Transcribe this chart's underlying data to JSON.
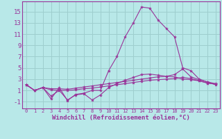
{
  "background_color": "#b8e8e8",
  "grid_color": "#9ecece",
  "line_color": "#993399",
  "xlabel": "Windchill (Refroidissement éolien,°C)",
  "xlabel_fontsize": 6.5,
  "ytick_fontsize": 6.5,
  "xtick_fontsize": 5.0,
  "yticks": [
    -1,
    1,
    3,
    5,
    7,
    9,
    11,
    13,
    15
  ],
  "xticks": [
    0,
    1,
    2,
    3,
    4,
    5,
    6,
    7,
    8,
    9,
    10,
    11,
    12,
    13,
    14,
    15,
    16,
    17,
    18,
    19,
    20,
    21,
    22,
    23
  ],
  "xlim": [
    -0.5,
    23.5
  ],
  "ylim": [
    -2.2,
    16.8
  ],
  "series": [
    {
      "x": [
        0,
        1,
        2,
        3,
        4,
        5,
        6,
        7,
        8,
        9,
        10,
        11,
        12,
        13,
        14,
        15,
        16,
        17,
        18,
        19,
        20,
        21,
        22,
        23
      ],
      "y": [
        2.0,
        1.0,
        1.5,
        -0.5,
        1.5,
        -0.8,
        0.3,
        0.5,
        1.0,
        1.0,
        4.5,
        7.0,
        10.5,
        13.0,
        15.8,
        15.6,
        13.5,
        12.0,
        10.5,
        5.0,
        4.5,
        3.0,
        2.5,
        2.0
      ]
    },
    {
      "x": [
        0,
        1,
        2,
        3,
        4,
        5,
        6,
        7,
        8,
        9,
        10,
        11,
        12,
        13,
        14,
        15,
        16,
        17,
        18,
        19,
        20,
        21,
        22,
        23
      ],
      "y": [
        2.0,
        1.0,
        1.5,
        1.3,
        1.3,
        1.2,
        1.4,
        1.6,
        1.8,
        2.0,
        2.2,
        2.4,
        2.6,
        2.8,
        3.0,
        3.2,
        3.4,
        3.5,
        3.8,
        4.8,
        3.4,
        2.9,
        2.5,
        2.2
      ]
    },
    {
      "x": [
        0,
        1,
        2,
        3,
        4,
        5,
        6,
        7,
        8,
        9,
        10,
        11,
        12,
        13,
        14,
        15,
        16,
        17,
        18,
        19,
        20,
        21,
        22,
        23
      ],
      "y": [
        2.0,
        1.0,
        1.5,
        1.1,
        1.0,
        1.0,
        1.1,
        1.3,
        1.4,
        1.6,
        1.8,
        2.0,
        2.2,
        2.4,
        2.6,
        2.8,
        2.9,
        3.0,
        3.1,
        3.3,
        3.1,
        2.7,
        2.3,
        2.1
      ]
    },
    {
      "x": [
        0,
        1,
        2,
        3,
        4,
        5,
        6,
        7,
        8,
        9,
        10,
        11,
        12,
        13,
        14,
        15,
        16,
        17,
        18,
        19,
        20,
        21,
        22,
        23
      ],
      "y": [
        2.0,
        1.0,
        1.5,
        0.0,
        1.0,
        -0.7,
        0.2,
        0.4,
        -0.7,
        0.2,
        1.5,
        2.2,
        2.8,
        3.3,
        3.8,
        3.9,
        3.7,
        3.5,
        3.4,
        3.0,
        2.9,
        2.7,
        2.3,
        2.1
      ]
    }
  ]
}
